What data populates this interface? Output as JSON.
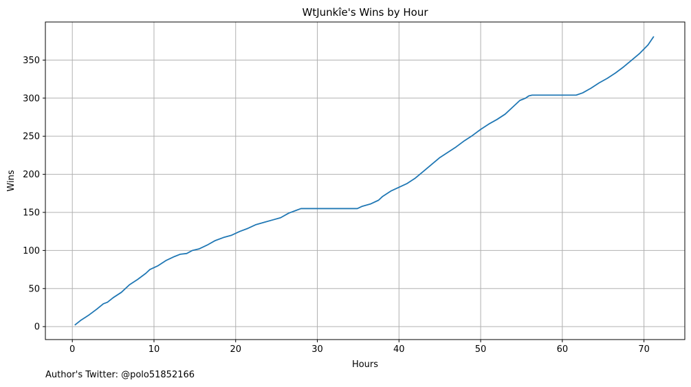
{
  "chart_data": {
    "type": "line",
    "title": "WtJunkîe's Wins by Hour",
    "xlabel": "Hours",
    "ylabel": "Wins",
    "xlim": [
      -3.3,
      75.0
    ],
    "ylim": [
      -17,
      400
    ],
    "xticks": [
      0,
      10,
      20,
      30,
      40,
      50,
      60,
      70
    ],
    "yticks": [
      0,
      50,
      100,
      150,
      200,
      250,
      300,
      350
    ],
    "grid": true,
    "series": [
      {
        "color": "#1f77b4",
        "points": [
          [
            0.3,
            2
          ],
          [
            1.0,
            8
          ],
          [
            2.0,
            15
          ],
          [
            3.0,
            23
          ],
          [
            3.8,
            30
          ],
          [
            4.3,
            32
          ],
          [
            5.0,
            38
          ],
          [
            6.0,
            45
          ],
          [
            7.0,
            55
          ],
          [
            8.0,
            62
          ],
          [
            9.0,
            70
          ],
          [
            9.5,
            75
          ],
          [
            10.5,
            80
          ],
          [
            11.5,
            87
          ],
          [
            12.5,
            92
          ],
          [
            13.2,
            95
          ],
          [
            14.0,
            96
          ],
          [
            14.7,
            100
          ],
          [
            15.5,
            102
          ],
          [
            16.5,
            107
          ],
          [
            17.5,
            113
          ],
          [
            18.5,
            117
          ],
          [
            19.5,
            120
          ],
          [
            20.5,
            125
          ],
          [
            21.5,
            129
          ],
          [
            22.5,
            134
          ],
          [
            23.5,
            137
          ],
          [
            24.5,
            140
          ],
          [
            25.5,
            143
          ],
          [
            26.5,
            149
          ],
          [
            27.5,
            153
          ],
          [
            28.0,
            155
          ],
          [
            30.0,
            155
          ],
          [
            32.0,
            155
          ],
          [
            34.9,
            155
          ],
          [
            35.5,
            158
          ],
          [
            36.5,
            161
          ],
          [
            37.5,
            166
          ],
          [
            38.0,
            171
          ],
          [
            39.0,
            178
          ],
          [
            40.0,
            183
          ],
          [
            41.0,
            188
          ],
          [
            42.0,
            195
          ],
          [
            43.0,
            204
          ],
          [
            44.0,
            213
          ],
          [
            45.0,
            222
          ],
          [
            46.0,
            229
          ],
          [
            47.0,
            236
          ],
          [
            48.0,
            244
          ],
          [
            49.0,
            251
          ],
          [
            50.0,
            259
          ],
          [
            51.0,
            266
          ],
          [
            52.0,
            272
          ],
          [
            53.0,
            279
          ],
          [
            54.0,
            289
          ],
          [
            54.8,
            297
          ],
          [
            55.5,
            300
          ],
          [
            55.9,
            303
          ],
          [
            56.3,
            304
          ],
          [
            57.0,
            304
          ],
          [
            60.0,
            304
          ],
          [
            61.7,
            304
          ],
          [
            62.5,
            307
          ],
          [
            63.5,
            313
          ],
          [
            64.5,
            320
          ],
          [
            65.5,
            326
          ],
          [
            66.5,
            333
          ],
          [
            67.5,
            341
          ],
          [
            68.5,
            350
          ],
          [
            69.5,
            359
          ],
          [
            70.5,
            370
          ],
          [
            71.2,
            381
          ]
        ]
      }
    ]
  },
  "footnote": "Author's Twitter: @polo51852166"
}
